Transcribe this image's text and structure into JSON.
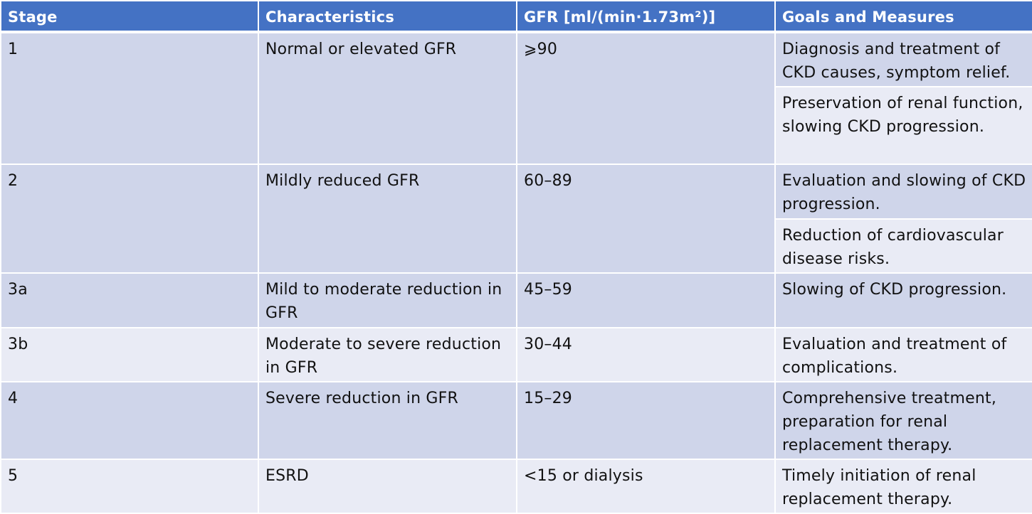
{
  "table": {
    "headers": {
      "stage": "Stage",
      "characteristics": "Characteristics",
      "gfr": "GFR [ml/(min·1.73m²)]",
      "goals": "Goals and Measures"
    },
    "rows": [
      {
        "stage": "1",
        "characteristics": "Normal or elevated GFR",
        "gfr": "⩾90",
        "goals": [
          "Diagnosis and treatment of CKD causes, symptom relief.",
          "Preservation of renal function, slowing CKD progression."
        ]
      },
      {
        "stage": "2",
        "characteristics": "Mildly reduced GFR",
        "gfr": "60–89",
        "goals": [
          "Evaluation and slowing of CKD progression.",
          "Reduction of cardiovascular disease risks."
        ]
      },
      {
        "stage": "3a",
        "characteristics": "Mild to moderate reduction in GFR",
        "gfr": "45–59",
        "goals": [
          "Slowing of CKD progression."
        ]
      },
      {
        "stage": "3b",
        "characteristics": "Moderate to severe reduction in GFR",
        "gfr": "30–44",
        "goals": [
          "Evaluation and treatment of complications."
        ]
      },
      {
        "stage": "4",
        "characteristics": "Severe reduction in GFR",
        "gfr": "15–29",
        "goals": [
          "Comprehensive treatment, preparation for renal replacement therapy."
        ]
      },
      {
        "stage": "5",
        "characteristics": "ESRD",
        "gfr": "<15 or dialysis",
        "goals": [
          "Timely initiation of renal replacement therapy."
        ]
      }
    ]
  },
  "colors": {
    "header_bg": "#4472c4",
    "row_dark": "#cfd5ea",
    "row_light": "#e9ebf5"
  }
}
